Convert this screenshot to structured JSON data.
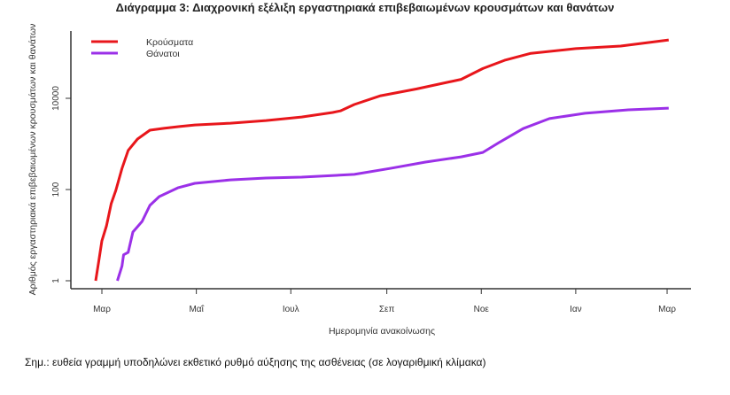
{
  "chart_data": {
    "type": "line",
    "title": "Διάγραμμα 3: Διαχρονική εξέλιξη εργαστηριακά επιβεβαιωμένων κρουσμάτων και θανάτων",
    "xlabel": "Ημερομηνία ανακοίνωσης",
    "ylabel": "Αριθμός εργαστηριακά επιβεβαιωμένων κρουσμάτων και θανάτων",
    "yscale": "log",
    "ylim": [
      1,
      250000
    ],
    "x_unit": "days since 1 March 2020",
    "xlim": [
      -20,
      380
    ],
    "x_ticks": [
      {
        "day": 0,
        "label": "Μαρ"
      },
      {
        "day": 61,
        "label": "Μαΐ"
      },
      {
        "day": 122,
        "label": "Ιουλ"
      },
      {
        "day": 184,
        "label": "Σεπ"
      },
      {
        "day": 245,
        "label": "Νοε"
      },
      {
        "day": 306,
        "label": "Ιαν"
      },
      {
        "day": 365,
        "label": "Μαρ"
      }
    ],
    "y_ticks": [
      {
        "value": 1,
        "label": "1"
      },
      {
        "value": 100,
        "label": "100"
      },
      {
        "value": 10000,
        "label": "10000"
      }
    ],
    "legend_position": "top-left",
    "series": [
      {
        "name": "Κρούσματα",
        "color": "#e8161b",
        "x": [
          -4,
          -2,
          0,
          3,
          6,
          9,
          13,
          17,
          23,
          31,
          40,
          50,
          60,
          83,
          106,
          129,
          149,
          154,
          163,
          180,
          203,
          232,
          246,
          260,
          277,
          306,
          335,
          366
        ],
        "y": [
          1,
          2.7,
          7.5,
          16,
          49,
          95,
          290,
          720,
          1280,
          2000,
          2200,
          2400,
          2600,
          2850,
          3250,
          3900,
          4900,
          5300,
          7300,
          11400,
          16000,
          26000,
          45000,
          68000,
          97000,
          123000,
          140000,
          190000
        ]
      },
      {
        "name": "Θάνατοι",
        "color": "#9b30e8",
        "x": [
          10,
          13,
          14,
          17,
          20,
          26,
          31,
          37,
          49,
          60,
          83,
          106,
          129,
          163,
          186,
          209,
          232,
          246,
          257,
          272,
          289,
          312,
          340,
          366
        ],
        "y": [
          1,
          2.1,
          3.7,
          4.2,
          11.7,
          20,
          45,
          70,
          109,
          137,
          163,
          179,
          187,
          215,
          290,
          400,
          520,
          650,
          1100,
          2170,
          3600,
          4700,
          5600,
          6100
        ]
      }
    ]
  },
  "note": "Σημ.: ευθεία γραμμή υποδηλώνει εκθετικό ρυθμό αύξησης της ασθένειας (σε λογαριθμική κλίμακα)"
}
